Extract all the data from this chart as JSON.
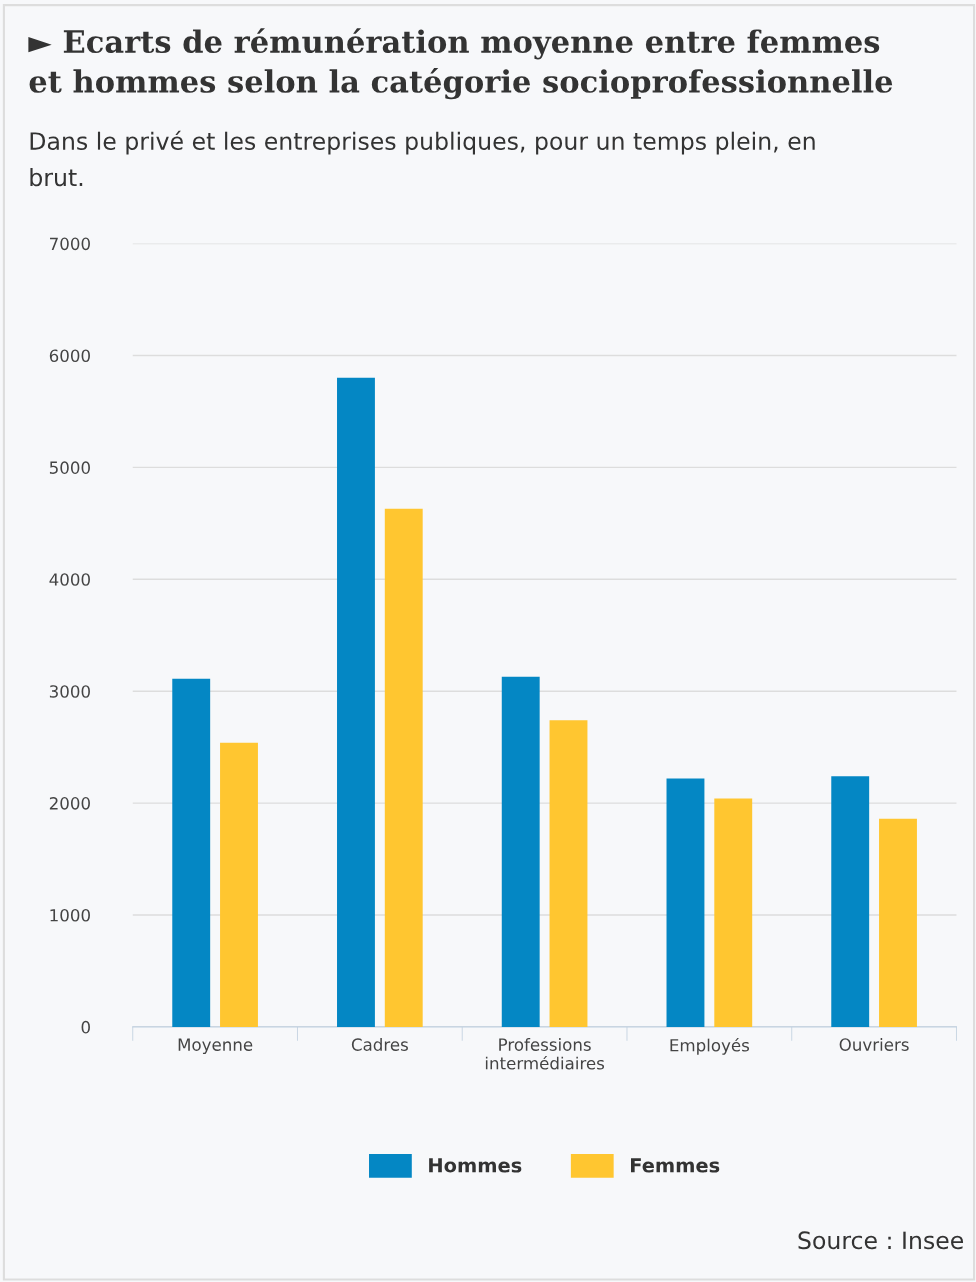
{
  "chart_data": {
    "type": "bar",
    "title": "► Ecarts de rémunération moyenne entre femmes\net hommes selon la catégorie socioprofessionnelle",
    "subtitle": "Dans le privé et les entreprises publiques, pour un temps plein, en\nbrut.",
    "categories": [
      "Moyenne",
      "Cadres",
      "Professions\nintermédiaires",
      "Employés",
      "Ouvriers"
    ],
    "series": [
      {
        "name": "Hommes",
        "color": "#0487c4",
        "values": [
          3110,
          5800,
          3130,
          2220,
          2240
        ]
      },
      {
        "name": "Femmes",
        "color": "#ffc630",
        "values": [
          2540,
          4630,
          2740,
          2040,
          1860
        ]
      }
    ],
    "ylim": [
      0,
      7000
    ],
    "yticks": [
      0,
      1000,
      2000,
      3000,
      4000,
      5000,
      6000,
      7000
    ],
    "grid": "y",
    "legend": "bottom",
    "annotations": [
      "Source : Insee"
    ]
  }
}
